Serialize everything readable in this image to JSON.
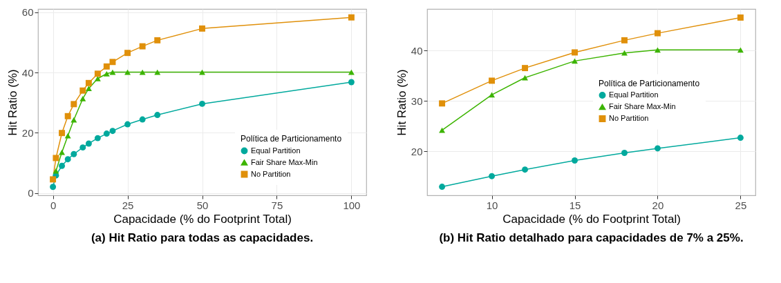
{
  "chart_data": [
    {
      "type": "line",
      "title": "(a) Hit Ratio para todas as capacidades.",
      "xlabel": "Capacidade (% do Footprint Total)",
      "ylabel": "Hit Ratio (%)",
      "legend_title": "Política de Particionamento",
      "legend": "bottom right",
      "grid": true,
      "x": [
        0,
        1,
        3,
        5,
        7,
        10,
        12,
        15,
        18,
        20,
        25,
        30,
        35,
        50,
        100
      ],
      "xlim": [
        -5,
        105
      ],
      "xticks": [
        0,
        25,
        50,
        75,
        100
      ],
      "ylim": [
        -0.8,
        61.1
      ],
      "yticks": [
        0,
        20,
        40,
        60
      ],
      "series": [
        {
          "name": "Equal Partition",
          "color": "#00a99d",
          "marker": "circle",
          "values": [
            2,
            5.8,
            9,
            11.2,
            12.9,
            15.1,
            16.4,
            18.2,
            19.7,
            20.6,
            22.8,
            24.4,
            25.9,
            29.6,
            36.8
          ]
        },
        {
          "name": "Fair Share Max-Min",
          "color": "#3cb400",
          "marker": "triangle",
          "values": [
            null,
            7.3,
            13.5,
            19,
            24.3,
            31.3,
            34.7,
            38,
            39.6,
            40.1,
            40.1,
            40.1,
            40.1,
            40.1,
            40.1
          ]
        },
        {
          "name": "No Partition",
          "color": "#e0900a",
          "marker": "square",
          "values": [
            4.5,
            11.6,
            19.9,
            25.5,
            29.5,
            34,
            36.5,
            39.6,
            42,
            43.5,
            46.5,
            48.7,
            50.7,
            54.6,
            58.3
          ]
        }
      ]
    },
    {
      "type": "line",
      "title": "(b) Hit Ratio detalhado para capacidades de 7% a 25%.",
      "xlabel": "Capacidade (% do Footprint Total)",
      "ylabel": "Hit Ratio (%)",
      "legend_title": "Política de Particionamento",
      "legend": "right",
      "grid": true,
      "x": [
        7,
        10,
        12,
        15,
        18,
        20,
        25
      ],
      "xlim": [
        6.1,
        25.9
      ],
      "xticks": [
        10,
        15,
        20,
        25
      ],
      "ylim": [
        11.3,
        48.2
      ],
      "yticks": [
        20,
        30,
        40
      ],
      "series": [
        {
          "name": "Equal Partition",
          "color": "#00a99d",
          "marker": "circle",
          "values": [
            13,
            15.1,
            16.4,
            18.2,
            19.7,
            20.6,
            22.7
          ]
        },
        {
          "name": "Fair Share Max-Min",
          "color": "#3cb400",
          "marker": "triangle",
          "values": [
            24.2,
            31.2,
            34.6,
            37.9,
            39.5,
            40.1,
            40.1
          ]
        },
        {
          "name": "No Partition",
          "color": "#e0900a",
          "marker": "square",
          "values": [
            29.5,
            34,
            36.5,
            39.6,
            42,
            43.4,
            46.5
          ]
        }
      ]
    }
  ]
}
